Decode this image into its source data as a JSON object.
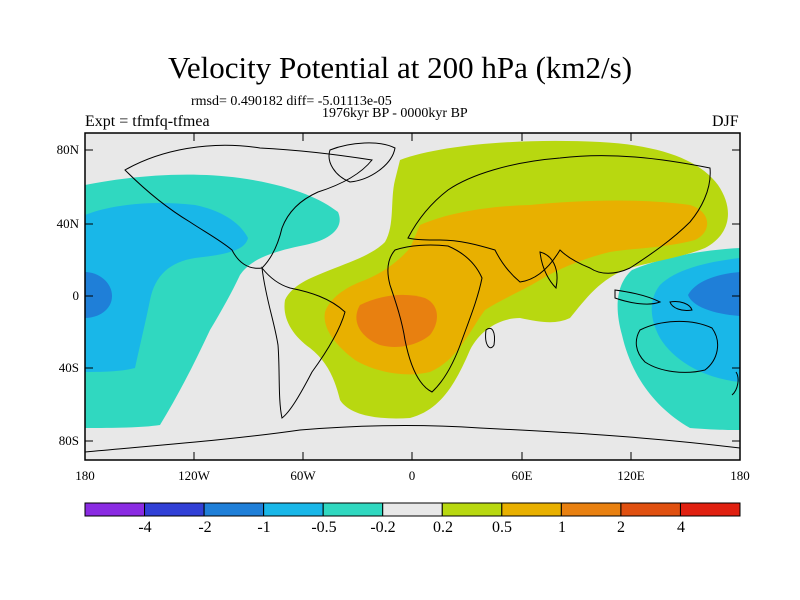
{
  "title": "Velocity Potential at 200 hPa (km2/s)",
  "stats": "rmsd= 0.490182  diff= -5.01113e-05",
  "subtitle": "1976kyr BP - 0000kyr BP",
  "experiment": "Expt = tfmfq-tfmea",
  "season": "DJF",
  "lat_ticks": [
    "80N",
    "40N",
    "0",
    "40S",
    "80S"
  ],
  "lon_ticks": [
    "180",
    "120W",
    "60W",
    "0",
    "60E",
    "120E",
    "180"
  ],
  "colorbar": {
    "labels": [
      "-4",
      "-2",
      "-1",
      "-0.5",
      "-0.2",
      "0.2",
      "0.5",
      "1",
      "2",
      "4"
    ],
    "colors": [
      "#8a2be2",
      "#3140d6",
      "#1f7fd8",
      "#19b7e8",
      "#30d8c0",
      "#e8e8e8",
      "#b8d810",
      "#e8b000",
      "#e88010",
      "#e05010",
      "#e02010"
    ]
  },
  "colors": {
    "neutral": "#e8e8e8",
    "teal": "#30d8c0",
    "cyan": "#19b7e8",
    "blue": "#1f7fd8",
    "yellow_green": "#b8d810",
    "amber": "#e8b000",
    "orange": "#e88010"
  }
}
